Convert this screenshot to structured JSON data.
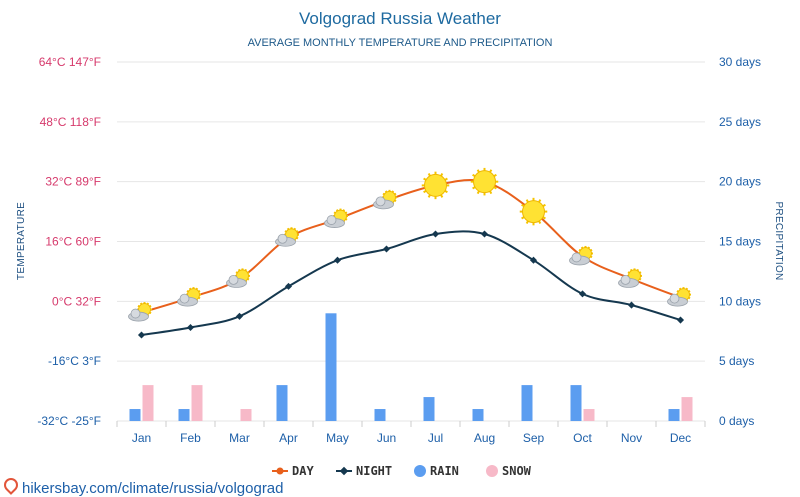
{
  "chart_data": {
    "type": "line",
    "title": "Volgograd Russia Weather",
    "subtitle": "AVERAGE MONTHLY TEMPERATURE AND PRECIPITATION",
    "ylabel_left": "TEMPERATURE",
    "ylabel_right": "PRECIPITATION",
    "left_axis": {
      "ylim": [
        -32,
        64
      ],
      "ticks": [
        {
          "value": 64,
          "label": "64°C 147°F"
        },
        {
          "value": 48,
          "label": "48°C 118°F"
        },
        {
          "value": 32,
          "label": "32°C 89°F"
        },
        {
          "value": 16,
          "label": "16°C 60°F"
        },
        {
          "value": 0,
          "label": "0°C 32°F"
        },
        {
          "value": -16,
          "label": "-16°C 3°F"
        },
        {
          "value": -32,
          "label": "-32°C -25°F"
        }
      ]
    },
    "right_axis": {
      "ylim": [
        0,
        30
      ],
      "ticks": [
        {
          "value": 30,
          "label": "30 days"
        },
        {
          "value": 25,
          "label": "25 days"
        },
        {
          "value": 20,
          "label": "20 days"
        },
        {
          "value": 15,
          "label": "15 days"
        },
        {
          "value": 10,
          "label": "10 days"
        },
        {
          "value": 5,
          "label": "5 days"
        },
        {
          "value": 0,
          "label": "0 days"
        }
      ]
    },
    "categories": [
      "Jan",
      "Feb",
      "Mar",
      "Apr",
      "May",
      "Jun",
      "Jul",
      "Aug",
      "Sep",
      "Oct",
      "Nov",
      "Dec"
    ],
    "series": [
      {
        "name": "DAY",
        "type": "line",
        "axis": "left",
        "color": "#e8601c",
        "values": [
          -3,
          1,
          6,
          17,
          22,
          27,
          31,
          32,
          24,
          12,
          6,
          1
        ]
      },
      {
        "name": "NIGHT",
        "type": "line",
        "axis": "left",
        "color": "#15384f",
        "values": [
          -9,
          -7,
          -4,
          4,
          11,
          14,
          18,
          18,
          11,
          2,
          -1,
          -5
        ]
      },
      {
        "name": "RAIN",
        "type": "bar",
        "axis": "right",
        "color": "#5b9df0",
        "values": [
          1,
          1,
          0,
          3,
          9,
          1,
          2,
          1,
          3,
          3,
          0,
          1
        ]
      },
      {
        "name": "SNOW",
        "type": "bar",
        "axis": "right",
        "color": "#f7b9c8",
        "values": [
          3,
          3,
          1,
          0,
          0,
          0,
          0,
          0,
          0,
          1,
          0,
          2
        ]
      }
    ],
    "weather_icons": [
      "partly-cloudy",
      "partly-cloudy",
      "partly-cloudy",
      "partly-cloudy",
      "partly-cloudy",
      "partly-cloudy",
      "sunny",
      "sunny",
      "sunny",
      "partly-cloudy",
      "partly-cloudy",
      "partly-cloudy"
    ],
    "legend": [
      {
        "label": "DAY",
        "color": "#e8601c",
        "marker": "line-circle"
      },
      {
        "label": "NIGHT",
        "color": "#15384f",
        "marker": "line-diamond"
      },
      {
        "label": "RAIN",
        "color": "#5b9df0",
        "marker": "circle"
      },
      {
        "label": "SNOW",
        "color": "#f7b9c8",
        "marker": "circle"
      }
    ],
    "legend_position": "bottom-center",
    "grid": true
  },
  "footer": {
    "url": "hikersbay.com/climate/russia/volgograd"
  }
}
